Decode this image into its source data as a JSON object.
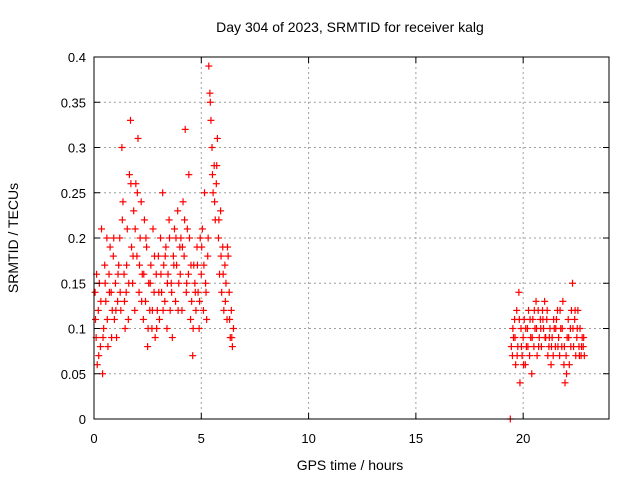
{
  "chart_data": {
    "type": "scatter",
    "title": "Day 304 of 2023, SRMTID for receiver kalg",
    "xlabel": "GPS time / hours",
    "ylabel": "SRMTID / TECUs",
    "xlim": [
      0,
      24
    ],
    "ylim": [
      0,
      0.4
    ],
    "xticks": [
      0,
      5,
      10,
      15,
      20
    ],
    "yticks": [
      0,
      0.05,
      0.1,
      0.15,
      0.2,
      0.25,
      0.3,
      0.35,
      0.4
    ],
    "xtick_labels": [
      "0",
      "5",
      "10",
      "15",
      "20"
    ],
    "ytick_labels": [
      "0",
      "0.05",
      "0.1",
      "0.15",
      "0.2",
      "0.25",
      "0.3",
      "0.35",
      "0.4"
    ],
    "grid": true,
    "legend": "none",
    "marker": "plus",
    "color": "#ff0000",
    "series": [
      {
        "points": [
          [
            0.05,
            0.14
          ],
          [
            0.1,
            0.09
          ],
          [
            0.15,
            0.06
          ],
          [
            0.2,
            0.12
          ],
          [
            0.25,
            0.15
          ],
          [
            0.3,
            0.08
          ],
          [
            0.35,
            0.21
          ],
          [
            0.4,
            0.05
          ],
          [
            0.45,
            0.1
          ],
          [
            0.5,
            0.17
          ],
          [
            0.55,
            0.13
          ],
          [
            0.6,
            0.2
          ],
          [
            0.65,
            0.08
          ],
          [
            0.7,
            0.16
          ],
          [
            0.75,
            0.19
          ],
          [
            0.8,
            0.14
          ],
          [
            0.85,
            0.12
          ],
          [
            0.9,
            0.18
          ],
          [
            0.95,
            0.11
          ],
          [
            1.0,
            0.15
          ],
          [
            1.05,
            0.09
          ],
          [
            1.1,
            0.13
          ],
          [
            1.15,
            0.17
          ],
          [
            1.2,
            0.2
          ],
          [
            1.25,
            0.12
          ],
          [
            1.3,
            0.3
          ],
          [
            1.35,
            0.24
          ],
          [
            1.4,
            0.16
          ],
          [
            1.45,
            0.1
          ],
          [
            1.5,
            0.14
          ],
          [
            1.55,
            0.21
          ],
          [
            1.6,
            0.11
          ],
          [
            1.65,
            0.27
          ],
          [
            1.7,
            0.33
          ],
          [
            1.75,
            0.19
          ],
          [
            1.8,
            0.15
          ],
          [
            1.85,
            0.23
          ],
          [
            1.9,
            0.12
          ],
          [
            1.95,
            0.26
          ],
          [
            2.0,
            0.18
          ],
          [
            2.05,
            0.31
          ],
          [
            2.1,
            0.14
          ],
          [
            2.15,
            0.2
          ],
          [
            2.2,
            0.24
          ],
          [
            2.25,
            0.16
          ],
          [
            2.3,
            0.11
          ],
          [
            2.35,
            0.22
          ],
          [
            2.4,
            0.13
          ],
          [
            2.45,
            0.19
          ],
          [
            2.5,
            0.08
          ],
          [
            2.55,
            0.15
          ],
          [
            2.6,
            0.12
          ],
          [
            2.65,
            0.17
          ],
          [
            2.7,
            0.1
          ],
          [
            2.75,
            0.21
          ],
          [
            2.8,
            0.14
          ],
          [
            2.85,
            0.09
          ],
          [
            2.9,
            0.16
          ],
          [
            2.95,
            0.12
          ],
          [
            3.0,
            0.18
          ],
          [
            3.05,
            0.11
          ],
          [
            3.1,
            0.2
          ],
          [
            3.15,
            0.14
          ],
          [
            3.2,
            0.25
          ],
          [
            3.25,
            0.17
          ],
          [
            3.3,
            0.13
          ],
          [
            3.35,
            0.19
          ],
          [
            3.4,
            0.1
          ],
          [
            3.45,
            0.16
          ],
          [
            3.5,
            0.22
          ],
          [
            3.55,
            0.12
          ],
          [
            3.6,
            0.15
          ],
          [
            3.65,
            0.09
          ],
          [
            3.7,
            0.18
          ],
          [
            3.75,
            0.21
          ],
          [
            3.8,
            0.13
          ],
          [
            3.85,
            0.17
          ],
          [
            3.9,
            0.23
          ],
          [
            3.95,
            0.15
          ],
          [
            4.0,
            0.19
          ],
          [
            4.05,
            0.2
          ],
          [
            4.1,
            0.12
          ],
          [
            4.15,
            0.24
          ],
          [
            4.2,
            0.18
          ],
          [
            4.25,
            0.32
          ],
          [
            4.3,
            0.14
          ],
          [
            4.35,
            0.21
          ],
          [
            4.4,
            0.16
          ],
          [
            4.45,
            0.2
          ],
          [
            4.5,
            0.11
          ],
          [
            4.55,
            0.13
          ],
          [
            4.6,
            0.07
          ],
          [
            4.65,
            0.17
          ],
          [
            4.7,
            0.15
          ],
          [
            4.75,
            0.12
          ],
          [
            4.8,
            0.19
          ],
          [
            4.85,
            0.14
          ],
          [
            4.9,
            0.1
          ],
          [
            4.95,
            0.2
          ],
          [
            5.0,
            0.16
          ],
          [
            5.05,
            0.21
          ],
          [
            5.1,
            0.12
          ],
          [
            5.15,
            0.25
          ],
          [
            5.2,
            0.15
          ],
          [
            5.25,
            0.11
          ],
          [
            5.3,
            0.18
          ],
          [
            5.35,
            0.39
          ],
          [
            5.4,
            0.36
          ],
          [
            5.45,
            0.33
          ],
          [
            5.5,
            0.3
          ],
          [
            5.55,
            0.25
          ],
          [
            5.6,
            0.28
          ],
          [
            5.65,
            0.22
          ],
          [
            5.7,
            0.26
          ],
          [
            5.75,
            0.31
          ],
          [
            5.8,
            0.2
          ],
          [
            5.85,
            0.16
          ],
          [
            5.9,
            0.23
          ],
          [
            5.95,
            0.14
          ],
          [
            6.0,
            0.19
          ],
          [
            6.05,
            0.12
          ],
          [
            6.1,
            0.17
          ],
          [
            6.15,
            0.15
          ],
          [
            6.2,
            0.11
          ],
          [
            6.25,
            0.18
          ],
          [
            6.3,
            0.14
          ],
          [
            6.35,
            0.09
          ],
          [
            6.4,
            0.12
          ],
          [
            6.45,
            0.08
          ],
          [
            6.5,
            0.1
          ],
          [
            0.07,
            0.11
          ],
          [
            0.12,
            0.16
          ],
          [
            0.22,
            0.07
          ],
          [
            0.32,
            0.13
          ],
          [
            0.42,
            0.09
          ],
          [
            0.52,
            0.15
          ],
          [
            0.62,
            0.11
          ],
          [
            0.72,
            0.14
          ],
          [
            0.82,
            0.09
          ],
          [
            0.92,
            0.2
          ],
          [
            1.02,
            0.12
          ],
          [
            1.12,
            0.16
          ],
          [
            1.22,
            0.14
          ],
          [
            1.32,
            0.22
          ],
          [
            1.42,
            0.13
          ],
          [
            1.52,
            0.17
          ],
          [
            1.62,
            0.15
          ],
          [
            1.72,
            0.26
          ],
          [
            1.82,
            0.18
          ],
          [
            1.92,
            0.21
          ],
          [
            2.02,
            0.25
          ],
          [
            2.12,
            0.17
          ],
          [
            2.22,
            0.13
          ],
          [
            2.32,
            0.16
          ],
          [
            2.42,
            0.2
          ],
          [
            2.52,
            0.1
          ],
          [
            2.62,
            0.15
          ],
          [
            2.72,
            0.12
          ],
          [
            2.82,
            0.18
          ],
          [
            2.92,
            0.1
          ],
          [
            3.02,
            0.14
          ],
          [
            3.12,
            0.16
          ],
          [
            3.22,
            0.12
          ],
          [
            3.32,
            0.18
          ],
          [
            3.42,
            0.15
          ],
          [
            3.52,
            0.2
          ],
          [
            3.62,
            0.14
          ],
          [
            3.72,
            0.17
          ],
          [
            3.82,
            0.2
          ],
          [
            3.92,
            0.12
          ],
          [
            4.02,
            0.16
          ],
          [
            4.12,
            0.19
          ],
          [
            4.22,
            0.22
          ],
          [
            4.32,
            0.15
          ],
          [
            4.42,
            0.27
          ],
          [
            4.52,
            0.17
          ],
          [
            4.62,
            0.1
          ],
          [
            4.72,
            0.14
          ],
          [
            4.82,
            0.17
          ],
          [
            4.92,
            0.13
          ],
          [
            5.02,
            0.19
          ],
          [
            5.12,
            0.17
          ],
          [
            5.22,
            0.14
          ],
          [
            5.32,
            0.2
          ],
          [
            5.42,
            0.35
          ],
          [
            5.52,
            0.27
          ],
          [
            5.62,
            0.24
          ],
          [
            5.72,
            0.28
          ],
          [
            5.82,
            0.22
          ],
          [
            5.92,
            0.18
          ],
          [
            6.02,
            0.16
          ],
          [
            6.12,
            0.13
          ],
          [
            6.22,
            0.19
          ],
          [
            6.32,
            0.11
          ],
          [
            6.42,
            0.09
          ],
          [
            19.45,
            0.08
          ],
          [
            19.5,
            0.07
          ],
          [
            19.55,
            0.09
          ],
          [
            19.6,
            0.11
          ],
          [
            19.65,
            0.06
          ],
          [
            19.7,
            0.12
          ],
          [
            19.75,
            0.08
          ],
          [
            19.8,
            0.14
          ],
          [
            19.85,
            0.04
          ],
          [
            19.9,
            0.1
          ],
          [
            19.95,
            0.07
          ],
          [
            20.0,
            0.09
          ],
          [
            20.05,
            0.11
          ],
          [
            20.1,
            0.06
          ],
          [
            20.15,
            0.08
          ],
          [
            20.2,
            0.1
          ],
          [
            20.25,
            0.12
          ],
          [
            20.3,
            0.07
          ],
          [
            20.35,
            0.09
          ],
          [
            20.4,
            0.05
          ],
          [
            20.45,
            0.11
          ],
          [
            20.5,
            0.08
          ],
          [
            20.55,
            0.1
          ],
          [
            20.6,
            0.13
          ],
          [
            20.65,
            0.07
          ],
          [
            20.7,
            0.12
          ],
          [
            20.75,
            0.09
          ],
          [
            20.8,
            0.11
          ],
          [
            20.85,
            0.08
          ],
          [
            20.9,
            0.12
          ],
          [
            20.95,
            0.1
          ],
          [
            21.0,
            0.13
          ],
          [
            21.05,
            0.09
          ],
          [
            21.1,
            0.11
          ],
          [
            21.15,
            0.07
          ],
          [
            21.2,
            0.08
          ],
          [
            21.25,
            0.1
          ],
          [
            21.3,
            0.06
          ],
          [
            21.35,
            0.09
          ],
          [
            21.4,
            0.07
          ],
          [
            21.45,
            0.1
          ],
          [
            21.5,
            0.08
          ],
          [
            21.55,
            0.11
          ],
          [
            21.6,
            0.12
          ],
          [
            21.65,
            0.09
          ],
          [
            21.7,
            0.07
          ],
          [
            21.75,
            0.1
          ],
          [
            21.8,
            0.08
          ],
          [
            21.85,
            0.13
          ],
          [
            21.9,
            0.06
          ],
          [
            21.95,
            0.04
          ],
          [
            22.0,
            0.07
          ],
          [
            22.05,
            0.09
          ],
          [
            22.1,
            0.11
          ],
          [
            22.15,
            0.06
          ],
          [
            22.2,
            0.1
          ],
          [
            22.25,
            0.12
          ],
          [
            22.3,
            0.15
          ],
          [
            22.35,
            0.08
          ],
          [
            22.4,
            0.11
          ],
          [
            22.45,
            0.07
          ],
          [
            22.5,
            0.09
          ],
          [
            22.55,
            0.12
          ],
          [
            22.6,
            0.08
          ],
          [
            22.65,
            0.1
          ],
          [
            22.7,
            0.07
          ],
          [
            22.75,
            0.09
          ],
          [
            22.8,
            0.08
          ],
          [
            22.85,
            0.07
          ],
          [
            19.52,
            0.1
          ],
          [
            19.62,
            0.09
          ],
          [
            19.72,
            0.07
          ],
          [
            19.82,
            0.11
          ],
          [
            19.92,
            0.08
          ],
          [
            20.02,
            0.06
          ],
          [
            20.12,
            0.1
          ],
          [
            20.22,
            0.08
          ],
          [
            20.32,
            0.11
          ],
          [
            20.42,
            0.09
          ],
          [
            20.52,
            0.12
          ],
          [
            20.62,
            0.1
          ],
          [
            20.72,
            0.08
          ],
          [
            20.82,
            0.1
          ],
          [
            20.92,
            0.11
          ],
          [
            21.02,
            0.09
          ],
          [
            21.12,
            0.12
          ],
          [
            21.22,
            0.09
          ],
          [
            21.32,
            0.08
          ],
          [
            21.42,
            0.11
          ],
          [
            21.52,
            0.1
          ],
          [
            21.62,
            0.08
          ],
          [
            21.72,
            0.12
          ],
          [
            21.82,
            0.1
          ],
          [
            21.92,
            0.08
          ],
          [
            22.02,
            0.05
          ],
          [
            22.12,
            0.09
          ],
          [
            22.22,
            0.08
          ],
          [
            22.32,
            0.1
          ],
          [
            22.42,
            0.12
          ],
          [
            22.52,
            0.1
          ],
          [
            22.62,
            0.07
          ],
          [
            22.72,
            0.08
          ],
          [
            22.82,
            0.09
          ],
          [
            19.4,
            0
          ]
        ]
      }
    ]
  }
}
